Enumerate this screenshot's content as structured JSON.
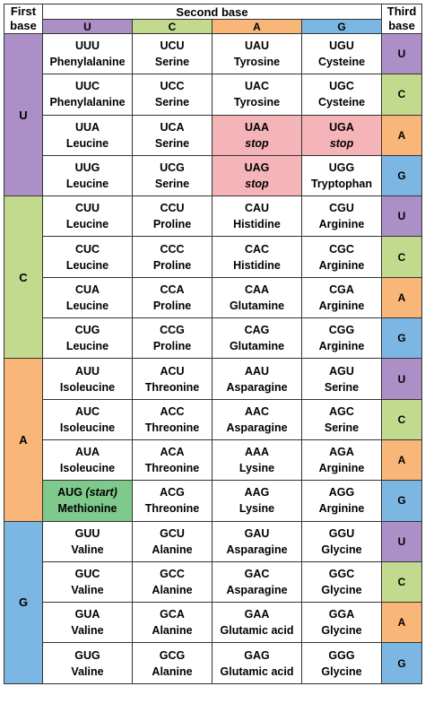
{
  "headers": {
    "first": "First base",
    "second": "Second base",
    "third": "Third base",
    "second_bases": [
      "U",
      "C",
      "A",
      "G"
    ]
  },
  "colors": {
    "U": "#ab8fc6",
    "C": "#c2da8e",
    "A": "#f8b678",
    "G": "#7cb7e3",
    "stop": "#f5b4b8",
    "start": "#7ec98b"
  },
  "groups": [
    {
      "first": "U",
      "rows": [
        {
          "third": "U",
          "cells": [
            {
              "codon": "UUU",
              "aa": "Phenylalanine"
            },
            {
              "codon": "UCU",
              "aa": "Serine"
            },
            {
              "codon": "UAU",
              "aa": "Tyrosine"
            },
            {
              "codon": "UGU",
              "aa": "Cysteine"
            }
          ]
        },
        {
          "third": "C",
          "cells": [
            {
              "codon": "UUC",
              "aa": "Phenylalanine"
            },
            {
              "codon": "UCC",
              "aa": "Serine"
            },
            {
              "codon": "UAC",
              "aa": "Tyrosine"
            },
            {
              "codon": "UGC",
              "aa": "Cysteine"
            }
          ]
        },
        {
          "third": "A",
          "cells": [
            {
              "codon": "UUA",
              "aa": "Leucine"
            },
            {
              "codon": "UCA",
              "aa": "Serine"
            },
            {
              "codon": "UAA",
              "aa": "stop",
              "kind": "stop"
            },
            {
              "codon": "UGA",
              "aa": "stop",
              "kind": "stop"
            }
          ]
        },
        {
          "third": "G",
          "cells": [
            {
              "codon": "UUG",
              "aa": "Leucine"
            },
            {
              "codon": "UCG",
              "aa": "Serine"
            },
            {
              "codon": "UAG",
              "aa": "stop",
              "kind": "stop"
            },
            {
              "codon": "UGG",
              "aa": "Tryptophan"
            }
          ]
        }
      ]
    },
    {
      "first": "C",
      "rows": [
        {
          "third": "U",
          "cells": [
            {
              "codon": "CUU",
              "aa": "Leucine"
            },
            {
              "codon": "CCU",
              "aa": "Proline"
            },
            {
              "codon": "CAU",
              "aa": "Histidine"
            },
            {
              "codon": "CGU",
              "aa": "Arginine"
            }
          ]
        },
        {
          "third": "C",
          "cells": [
            {
              "codon": "CUC",
              "aa": "Leucine"
            },
            {
              "codon": "CCC",
              "aa": "Proline"
            },
            {
              "codon": "CAC",
              "aa": "Histidine"
            },
            {
              "codon": "CGC",
              "aa": "Arginine"
            }
          ]
        },
        {
          "third": "A",
          "cells": [
            {
              "codon": "CUA",
              "aa": "Leucine"
            },
            {
              "codon": "CCA",
              "aa": "Proline"
            },
            {
              "codon": "CAA",
              "aa": "Glutamine"
            },
            {
              "codon": "CGA",
              "aa": "Arginine"
            }
          ]
        },
        {
          "third": "G",
          "cells": [
            {
              "codon": "CUG",
              "aa": "Leucine"
            },
            {
              "codon": "CCG",
              "aa": "Proline"
            },
            {
              "codon": "CAG",
              "aa": "Glutamine"
            },
            {
              "codon": "CGG",
              "aa": "Arginine"
            }
          ]
        }
      ]
    },
    {
      "first": "A",
      "rows": [
        {
          "third": "U",
          "cells": [
            {
              "codon": "AUU",
              "aa": "Isoleucine"
            },
            {
              "codon": "ACU",
              "aa": "Threonine"
            },
            {
              "codon": "AAU",
              "aa": "Asparagine"
            },
            {
              "codon": "AGU",
              "aa": "Serine"
            }
          ]
        },
        {
          "third": "C",
          "cells": [
            {
              "codon": "AUC",
              "aa": "Isoleucine"
            },
            {
              "codon": "ACC",
              "aa": "Threonine"
            },
            {
              "codon": "AAC",
              "aa": "Asparagine"
            },
            {
              "codon": "AGC",
              "aa": "Serine"
            }
          ]
        },
        {
          "third": "A",
          "cells": [
            {
              "codon": "AUA",
              "aa": "Isoleucine"
            },
            {
              "codon": "ACA",
              "aa": "Threonine"
            },
            {
              "codon": "AAA",
              "aa": "Lysine"
            },
            {
              "codon": "AGA",
              "aa": "Arginine"
            }
          ]
        },
        {
          "third": "G",
          "cells": [
            {
              "codon": "AUG",
              "note": "(start)",
              "aa": "Methionine",
              "kind": "start"
            },
            {
              "codon": "ACG",
              "aa": "Threonine"
            },
            {
              "codon": "AAG",
              "aa": "Lysine"
            },
            {
              "codon": "AGG",
              "aa": "Arginine"
            }
          ]
        }
      ]
    },
    {
      "first": "G",
      "rows": [
        {
          "third": "U",
          "cells": [
            {
              "codon": "GUU",
              "aa": "Valine"
            },
            {
              "codon": "GCU",
              "aa": "Alanine"
            },
            {
              "codon": "GAU",
              "aa": "Asparagine"
            },
            {
              "codon": "GGU",
              "aa": "Glycine"
            }
          ]
        },
        {
          "third": "C",
          "cells": [
            {
              "codon": "GUC",
              "aa": "Valine"
            },
            {
              "codon": "GCC",
              "aa": "Alanine"
            },
            {
              "codon": "GAC",
              "aa": "Asparagine"
            },
            {
              "codon": "GGC",
              "aa": "Glycine"
            }
          ]
        },
        {
          "third": "A",
          "cells": [
            {
              "codon": "GUA",
              "aa": "Valine"
            },
            {
              "codon": "GCA",
              "aa": "Alanine"
            },
            {
              "codon": "GAA",
              "aa": "Glutamic acid"
            },
            {
              "codon": "GGA",
              "aa": "Glycine"
            }
          ]
        },
        {
          "third": "G",
          "cells": [
            {
              "codon": "GUG",
              "aa": "Valine"
            },
            {
              "codon": "GCG",
              "aa": "Alanine"
            },
            {
              "codon": "GAG",
              "aa": "Glutamic acid"
            },
            {
              "codon": "GGG",
              "aa": "Glycine"
            }
          ]
        }
      ]
    }
  ]
}
